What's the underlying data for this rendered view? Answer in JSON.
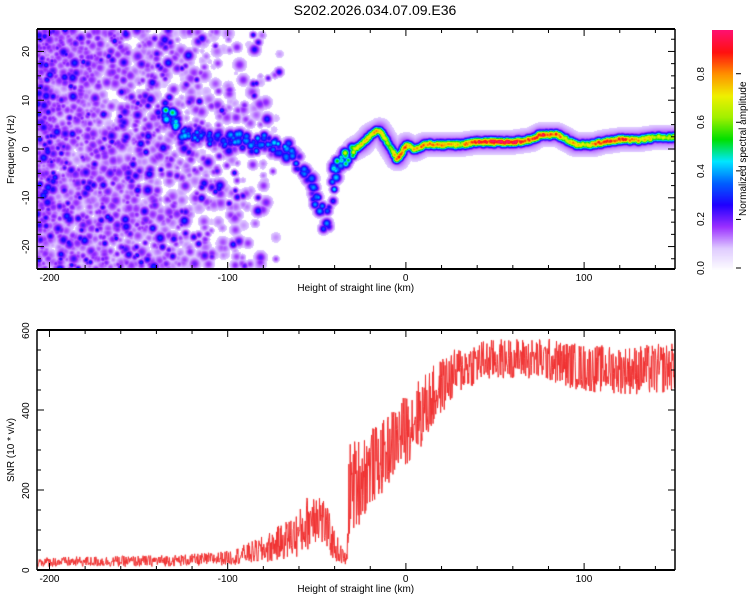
{
  "title": "S202.2026.034.07.09.E36",
  "chart_data": [
    {
      "type": "heatmap",
      "name": "spectrogram",
      "xlabel": "Height of straight line (km)",
      "ylabel": "Frequency (Hz)",
      "xlim": [
        -207,
        151
      ],
      "ylim": [
        -24.6,
        24.6
      ],
      "xticks": [
        -200,
        -100,
        0,
        100
      ],
      "xtick_labels": [
        "-200",
        "-100",
        "0",
        "100"
      ],
      "yticks": [
        -20,
        -10,
        0,
        10,
        20
      ],
      "ytick_labels": [
        "-20",
        "-10",
        "0",
        "10",
        "20"
      ],
      "colorbar": {
        "label": "Normalized spectral amplitude",
        "range": [
          0.0,
          0.98
        ],
        "ticks": [
          0.0,
          0.2,
          0.4,
          0.6,
          0.8
        ],
        "tick_labels": [
          "0.0",
          "0.2",
          "0.4",
          "0.6",
          "0.8"
        ],
        "colormap": [
          "#ffffff",
          "#e0ccff",
          "#9b30ff",
          "#2000ff",
          "#0060ff",
          "#00e8ff",
          "#00e000",
          "#a0f000",
          "#f0f000",
          "#ff9000",
          "#ff1010",
          "#ff1070"
        ]
      },
      "ridge": {
        "x_km": [
          -135,
          -125,
          -115,
          -105,
          -95,
          -85,
          -80,
          -75,
          -70,
          -65,
          -60,
          -55,
          -50,
          -45,
          -40,
          -35,
          -30,
          -25,
          -20,
          -15,
          -10,
          -5,
          0,
          5,
          10,
          20,
          30,
          40,
          50,
          60,
          70,
          75,
          80,
          85,
          90,
          95,
          100,
          105,
          110,
          120,
          130,
          140,
          151
        ],
        "freq_hz": [
          8,
          4,
          3,
          2,
          2,
          1,
          2,
          1,
          -1,
          0,
          -3,
          -6,
          -10,
          -16,
          -4,
          -2,
          0,
          1,
          3,
          4,
          1,
          -2,
          1,
          0,
          1,
          1,
          1,
          1.5,
          1.5,
          1.5,
          2,
          3,
          3,
          3,
          2,
          1,
          1,
          1,
          1.5,
          2,
          2,
          2.5,
          2.5
        ],
        "amplitude": [
          0.45,
          0.35,
          0.3,
          0.3,
          0.32,
          0.35,
          0.3,
          0.35,
          0.35,
          0.3,
          0.3,
          0.3,
          0.3,
          0.35,
          0.45,
          0.55,
          0.65,
          0.7,
          0.8,
          0.8,
          0.6,
          0.85,
          0.8,
          0.75,
          0.8,
          0.75,
          0.7,
          0.9,
          0.95,
          0.95,
          0.8,
          0.9,
          0.9,
          0.8,
          0.7,
          0.75,
          0.6,
          0.75,
          0.9,
          0.9,
          0.75,
          0.65,
          0.6
        ]
      },
      "noise": {
        "x_range_km": [
          -207,
          -100
        ],
        "amplitude_range": [
          0.02,
          0.25
        ]
      }
    },
    {
      "type": "line",
      "name": "snr",
      "xlabel": "Height of straight line (km)",
      "ylabel": "SNR (10 * v/v)",
      "xlim": [
        -207,
        151
      ],
      "ylim": [
        0,
        600
      ],
      "xticks": [
        -200,
        -100,
        0,
        100
      ],
      "xtick_labels": [
        "-200",
        "-100",
        "0",
        "100"
      ],
      "yticks": [
        0,
        200,
        400,
        600
      ],
      "ytick_labels": [
        "0",
        "200",
        "400",
        "600"
      ],
      "line_color": "#f03030",
      "series": [
        {
          "name": "SNR envelope",
          "x": [
            -207,
            -150,
            -120,
            -100,
            -90,
            -80,
            -70,
            -60,
            -55,
            -50,
            -45,
            -40,
            -35,
            -33,
            -32,
            -25,
            -20,
            -15,
            -10,
            -5,
            0,
            5,
            10,
            15,
            20,
            30,
            40,
            60,
            80,
            100,
            120,
            140,
            151
          ],
          "mean": [
            20,
            22,
            25,
            30,
            40,
            50,
            70,
            90,
            120,
            150,
            110,
            60,
            30,
            25,
            200,
            230,
            260,
            270,
            300,
            330,
            350,
            380,
            400,
            430,
            460,
            500,
            520,
            530,
            525,
            505,
            500,
            500,
            510
          ],
          "spread": [
            12,
            14,
            15,
            18,
            25,
            35,
            45,
            60,
            70,
            80,
            60,
            40,
            20,
            15,
            120,
            110,
            100,
            90,
            90,
            90,
            90,
            90,
            90,
            80,
            70,
            60,
            55,
            50,
            55,
            60,
            60,
            65,
            60
          ]
        }
      ]
    }
  ]
}
